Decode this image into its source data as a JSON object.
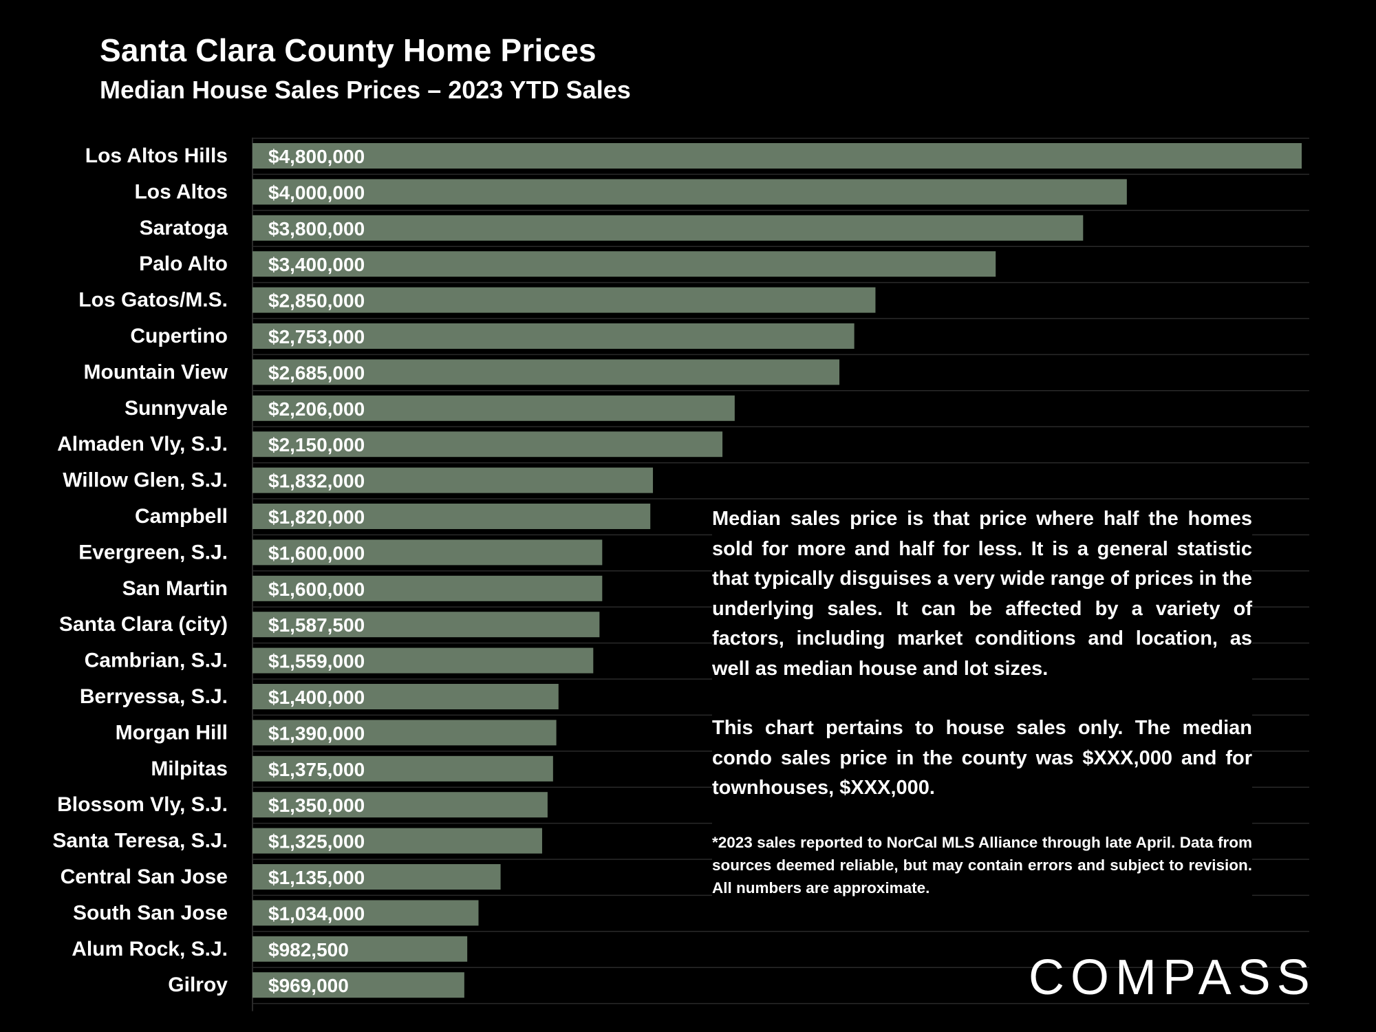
{
  "header": {
    "title": "Santa Clara County Home Prices",
    "subtitle": "Median House Sales Prices – 2023 YTD Sales"
  },
  "chart_data": {
    "type": "bar",
    "orientation": "horizontal",
    "title": "Santa Clara County Home Prices",
    "subtitle": "Median House Sales Prices – 2023 YTD Sales",
    "xlabel": "",
    "ylabel": "",
    "xlim": [
      0,
      4800000
    ],
    "grid": true,
    "bar_color": "#677a66",
    "grid_color": "#2a2a2a",
    "categories": [
      "Los Altos Hills",
      "Los Altos",
      "Saratoga",
      "Palo Alto",
      "Los Gatos/M.S.",
      "Cupertino",
      "Mountain View",
      "Sunnyvale",
      "Almaden Vly, S.J.",
      "Willow Glen, S.J.",
      "Campbell",
      "Evergreen, S.J.",
      "San Martin",
      "Santa Clara (city)",
      "Cambrian, S.J.",
      "Berryessa, S.J.",
      "Morgan Hill",
      "Milpitas",
      "Blossom Vly, S.J.",
      "Santa Teresa, S.J.",
      "Central San Jose",
      "South San Jose",
      "Alum Rock, S.J.",
      "Gilroy"
    ],
    "values": [
      4800000,
      4000000,
      3800000,
      3400000,
      2850000,
      2753000,
      2685000,
      2206000,
      2150000,
      1832000,
      1820000,
      1600000,
      1600000,
      1587500,
      1559000,
      1400000,
      1390000,
      1375000,
      1350000,
      1325000,
      1135000,
      1034000,
      982500,
      969000
    ],
    "value_labels": [
      "$4,800,000",
      "$4,000,000",
      "$3,800,000",
      "$3,400,000",
      "$2,850,000",
      "$2,753,000",
      "$2,685,000",
      "$2,206,000",
      "$2,150,000",
      "$1,832,000",
      "$1,820,000",
      "$1,600,000",
      "$1,600,000",
      "$1,587,500",
      "$1,559,000",
      "$1,400,000",
      "$1,390,000",
      "$1,375,000",
      "$1,350,000",
      "$1,325,000",
      "$1,135,000",
      "$1,034,000",
      "$982,500",
      "$969,000"
    ]
  },
  "note": {
    "para1": "Median sales price is that price where half the homes sold for more and half for less. It is a general statistic that typically disguises a very wide range of prices in the underlying sales. It can be affected by a variety of factors, including market conditions and location, as well as median house and lot sizes.",
    "para2": "This chart pertains to house sales only. The median condo sales price in the county was $XXX,000 and for townhouses, $XXX,000.",
    "footnote": "*2023 sales reported to NorCal MLS Alliance through late April. Data from sources deemed reliable, but may contain errors and subject to revision. All numbers are approximate."
  },
  "brand": {
    "logo_text": "COMPASS"
  }
}
